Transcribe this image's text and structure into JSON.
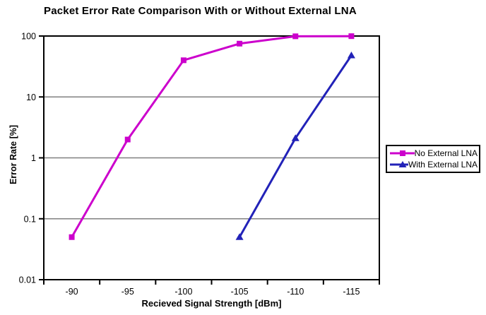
{
  "chart_data": {
    "type": "line",
    "title": "Packet Error Rate Comparison With or Without External LNA",
    "xlabel": "Recieved Signal Strength [dBm]",
    "ylabel": "Error Rate [%]",
    "categories": [
      "-90",
      "-95",
      "-100",
      "-105",
      "-110",
      "-115"
    ],
    "y_scale": "log",
    "ylim": [
      0.01,
      100
    ],
    "yticks": [
      {
        "label": "100",
        "value": 100
      },
      {
        "label": "10",
        "value": 10
      },
      {
        "label": "1",
        "value": 1
      },
      {
        "label": "0.1",
        "value": 0.1
      },
      {
        "label": "0.01",
        "value": 0.01
      }
    ],
    "gridlines": [
      10,
      1,
      0.1
    ],
    "grid": "horizontal-only",
    "legend_position": "right-boxed",
    "series": [
      {
        "name": "No External LNA",
        "color": "#CC00CC",
        "marker": "square",
        "values": [
          0.05,
          2,
          40,
          75,
          99,
          99.5
        ]
      },
      {
        "name": "With External LNA",
        "color": "#2222B8",
        "marker": "triangle",
        "values": [
          null,
          null,
          null,
          0.05,
          2.1,
          48
        ]
      }
    ],
    "colors": {
      "axis": "#000000",
      "gridline": "#808080",
      "text": "#000000",
      "background": "#ffffff"
    }
  }
}
